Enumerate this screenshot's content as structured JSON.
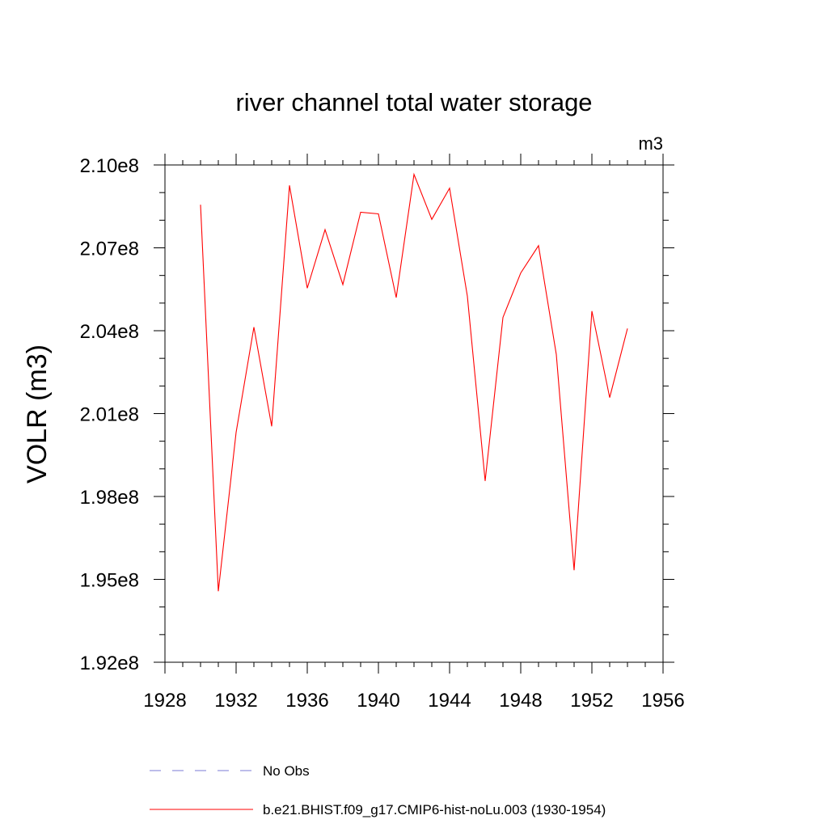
{
  "chart_data": {
    "type": "line",
    "title": "river channel total water storage",
    "units_label": "m3",
    "ylabel": "VOLR  (m3)",
    "xlabel": "",
    "xlim": [
      1928,
      1956
    ],
    "ylim": [
      192000000,
      210000000
    ],
    "x_ticks": [
      1928,
      1932,
      1936,
      1940,
      1944,
      1948,
      1952,
      1956
    ],
    "x_tick_labels": [
      "1928",
      "1932",
      "1936",
      "1940",
      "1944",
      "1948",
      "1952",
      "1956"
    ],
    "y_ticks": [
      192000000,
      195000000,
      198000000,
      201000000,
      204000000,
      207000000,
      210000000
    ],
    "y_tick_labels": [
      "1.92e8",
      "1.95e8",
      "1.98e8",
      "2.01e8",
      "2.04e8",
      "2.07e8",
      "2.10e8"
    ],
    "grid": false,
    "legend_position": "bottom",
    "series": [
      {
        "name": "No Obs",
        "color": "#7b7bd6",
        "style": "dashed",
        "x": [],
        "y": []
      },
      {
        "name": "b.e21.BHIST.f09_g17.CMIP6-hist-noLu.003 (1930-1954)",
        "color": "#ff0000",
        "style": "solid",
        "x": [
          1930,
          1931,
          1932,
          1933,
          1934,
          1935,
          1936,
          1937,
          1938,
          1939,
          1940,
          1941,
          1942,
          1943,
          1944,
          1945,
          1946,
          1947,
          1948,
          1949,
          1950,
          1951,
          1952,
          1953,
          1954
        ],
        "y": [
          208560000,
          194570000,
          200320000,
          204130000,
          200540000,
          209260000,
          205540000,
          207660000,
          205670000,
          208290000,
          208230000,
          205200000,
          209660000,
          208030000,
          209160000,
          205250000,
          198560000,
          204480000,
          206090000,
          207080000,
          203140000,
          195330000,
          204710000,
          201580000,
          204080000
        ]
      }
    ]
  }
}
